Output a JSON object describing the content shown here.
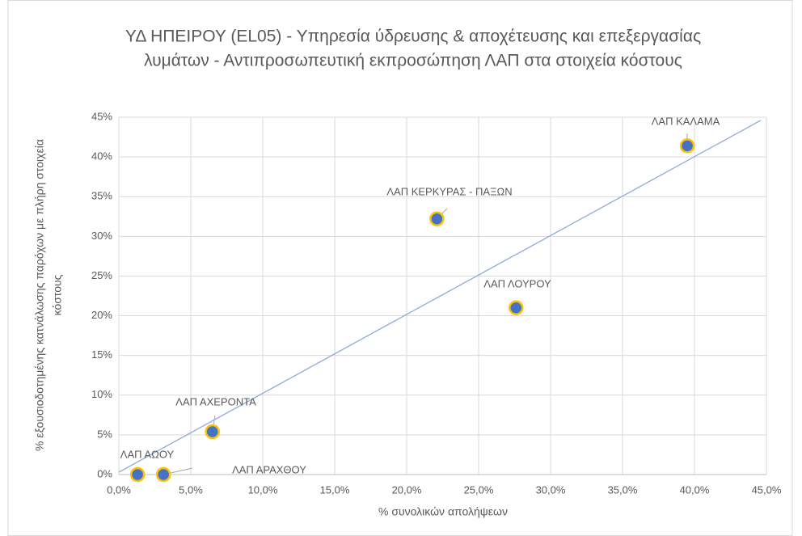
{
  "chart_data": {
    "type": "scatter",
    "title": [
      "ΥΔ ΗΠΕΙΡΟΥ (EL05) - Υπηρεσία ύδρευσης & αποχέτευσης και επεξεργασίας",
      "λυμάτων - Αντιπροσωπευτική εκπροσώπηση ΛΑΠ στα στοιχεία κόστους"
    ],
    "x_label": "% συνολικών απολήψεων",
    "y_label": [
      "% εξουσιοδοτημένης κατνάλωσης παρόχων με πλήρη στοιχεία",
      "κόστους"
    ],
    "series": [
      {
        "color": "#4472c4",
        "edge_color": "#ffc000",
        "point_labels": [
          "ΛΑΠ ΚΑΛΑΜΑ",
          "ΛΑΠ ΚΕΡΚΥΡΑΣ - ΠΑΞΩΝ",
          "ΛΑΠ ΛΟΥΡΟΥ",
          "ΛΑΠ ΑΧΕΡΟΝΤΑ",
          "ΛΑΠ ΑΩΟΥ",
          "ΛΑΠ ΑΡΑΧΘΟΥ"
        ],
        "x": [
          39.5,
          22.1,
          27.6,
          6.5,
          1.3,
          3.1
        ],
        "values": [
          41.4,
          32.2,
          21.0,
          5.4,
          0,
          0
        ]
      }
    ],
    "trendline": {
      "color": "#8eaadb",
      "x": [
        0,
        44.6
      ],
      "values": [
        0.3,
        44.6
      ]
    },
    "xlim": [
      0,
      45
    ],
    "ylim": [
      0,
      45
    ],
    "xticks": [
      {
        "value": 0,
        "label": "0,0%"
      },
      {
        "value": 5,
        "label": "5,0%"
      },
      {
        "value": 10,
        "label": "10,0%"
      },
      {
        "value": 15,
        "label": "15,0%"
      },
      {
        "value": 20,
        "label": "20,0%"
      },
      {
        "value": 25,
        "label": "25,0%"
      },
      {
        "value": 30,
        "label": "30,0%"
      },
      {
        "value": 35,
        "label": "35,0%"
      },
      {
        "value": 40,
        "label": "40,0%"
      },
      {
        "value": 45,
        "label": "45,0%"
      }
    ],
    "yticks": [
      {
        "value": 0,
        "label": "0%"
      },
      {
        "value": 5,
        "label": "5%"
      },
      {
        "value": 10,
        "label": "10%"
      },
      {
        "value": 15,
        "label": "15%"
      },
      {
        "value": 20,
        "label": "20%"
      },
      {
        "value": 25,
        "label": "25%"
      },
      {
        "value": 30,
        "label": "30%"
      },
      {
        "value": 35,
        "label": "35%"
      },
      {
        "value": 40,
        "label": "40%"
      },
      {
        "value": 45,
        "label": "45%"
      }
    ],
    "grid": true
  }
}
